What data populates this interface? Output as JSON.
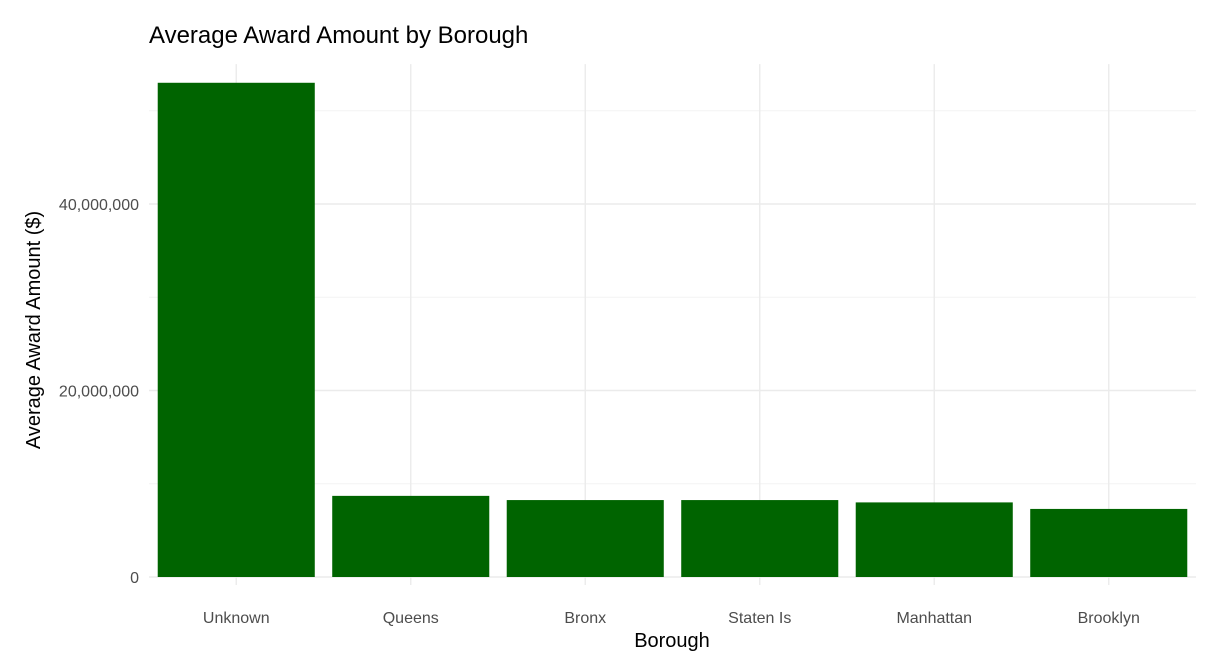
{
  "chart_data": {
    "type": "bar",
    "title": "Average Award Amount by Borough",
    "xlabel": "Borough",
    "ylabel": "Average Award Amount ($)",
    "categories": [
      "Unknown",
      "Queens",
      "Bronx",
      "Staten Is",
      "Manhattan",
      "Brooklyn"
    ],
    "values": [
      53000000,
      8700000,
      8250000,
      8250000,
      8000000,
      7300000
    ],
    "ylim": [
      0,
      55000000
    ],
    "y_ticks": [
      0,
      20000000,
      40000000
    ],
    "y_tick_labels": [
      "0",
      "20,000,000",
      "40,000,000"
    ],
    "bar_color": "#006400",
    "grid": true,
    "legend": "none"
  }
}
